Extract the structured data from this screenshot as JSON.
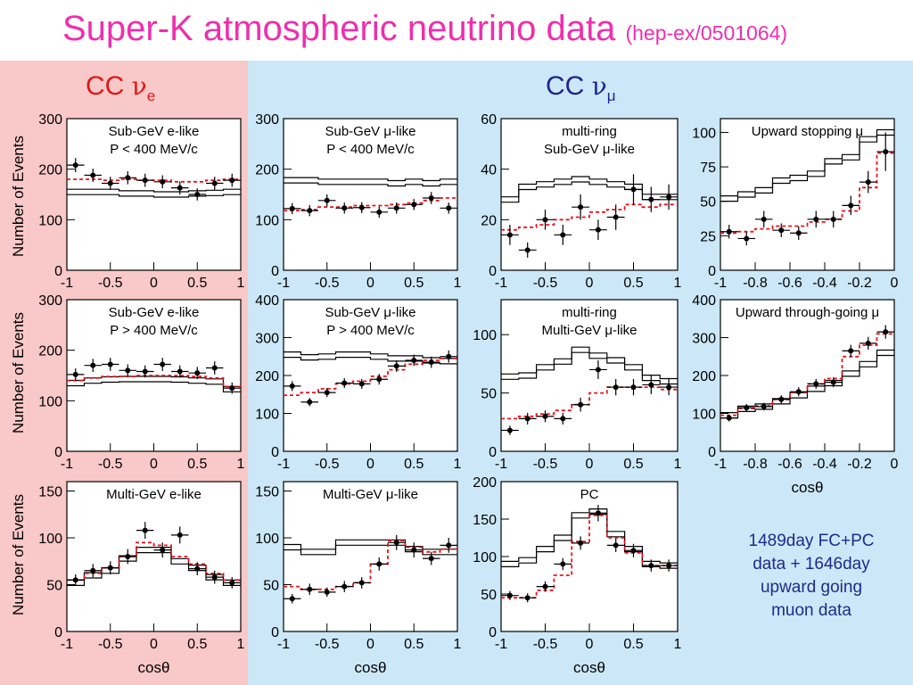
{
  "title": {
    "main": "Super-K atmospheric neutrino data",
    "ref": "(hep-ex/0501064)"
  },
  "headers": {
    "e_prefix": "CC",
    "e_greek": "ν",
    "e_sub": "e",
    "mu_prefix": "CC",
    "mu_greek": "ν",
    "mu_sub": "μ"
  },
  "ylabel": "Number of Events",
  "note": {
    "line1": "1489day FC+PC",
    "line2": "data  +  1646day",
    "line3": "upward going",
    "line4": "muon data"
  },
  "colors": {
    "title": "#ee2fae",
    "pink_bg": "#f9c8c8",
    "blue_bg": "#cce8f8",
    "mc_osc": "#e8141e",
    "header_e": "#e01818",
    "header_mu": "#20238e",
    "note": "#1f2a8a"
  },
  "chart_data": [
    {
      "id": "subgev-e-low",
      "type": "histogram",
      "label1": "Sub-GeV e-like",
      "label2": "P < 400 MeV/c",
      "xlim": [
        -1,
        1
      ],
      "ylim": [
        0,
        300
      ],
      "yticks": [
        0,
        100,
        200,
        300
      ],
      "xticks": [
        "-1",
        "-0.5",
        "0",
        "0.5",
        "1"
      ],
      "xlabel": "",
      "bins": [
        -1,
        -0.8,
        -0.6,
        -0.4,
        -0.2,
        0,
        0.2,
        0.4,
        0.6,
        0.8,
        1
      ],
      "nomc": [
        155,
        155,
        155,
        152,
        152,
        150,
        150,
        152,
        153,
        155
      ],
      "mc": [
        180,
        180,
        178,
        180,
        178,
        178,
        175,
        175,
        178,
        180
      ],
      "data": [
        208,
        188,
        172,
        183,
        178,
        175,
        163,
        150,
        172,
        178
      ],
      "errors": [
        14,
        13,
        13,
        13,
        13,
        13,
        13,
        12,
        13,
        13
      ]
    },
    {
      "id": "subgev-mu-low",
      "type": "histogram",
      "label1": "Sub-GeV μ-like",
      "label2": "P < 400 MeV/c",
      "xlim": [
        -1,
        1
      ],
      "ylim": [
        0,
        300
      ],
      "yticks": [
        0,
        100,
        200,
        300
      ],
      "xticks": [
        "-1",
        "-0.5",
        "0",
        "0.5",
        "1"
      ],
      "xlabel": "",
      "bins": [
        -1,
        -0.8,
        -0.6,
        -0.4,
        -0.2,
        0,
        0.2,
        0.4,
        0.6,
        0.8,
        1
      ],
      "nomc": [
        178,
        178,
        175,
        175,
        175,
        175,
        172,
        175,
        172,
        175
      ],
      "mc": [
        118,
        120,
        125,
        125,
        128,
        128,
        130,
        133,
        138,
        143
      ],
      "data": [
        122,
        118,
        138,
        123,
        124,
        115,
        123,
        130,
        143,
        123
      ],
      "errors": [
        11,
        11,
        12,
        11,
        11,
        11,
        11,
        11,
        12,
        11
      ]
    },
    {
      "id": "multiring-subgev-mu",
      "type": "histogram",
      "label1": "multi-ring",
      "label2": "Sub-GeV μ-like",
      "xlim": [
        -1,
        1
      ],
      "ylim": [
        0,
        60
      ],
      "yticks": [
        0,
        20,
        40,
        60
      ],
      "xticks": [
        "-1",
        "-0.5",
        "0",
        "0.5",
        "1"
      ],
      "xlabel": "",
      "bins": [
        -1,
        -0.8,
        -0.6,
        -0.4,
        -0.2,
        0,
        0.2,
        0.4,
        0.6,
        0.8,
        1
      ],
      "nomc": [
        28,
        33,
        34,
        35,
        36,
        35,
        34,
        33,
        29,
        29
      ],
      "mc": [
        16,
        17,
        18,
        20,
        21,
        23,
        24,
        26,
        25,
        26
      ],
      "data": [
        14,
        8,
        20,
        14,
        25,
        16,
        21,
        32,
        28,
        29
      ],
      "errors": [
        4,
        3,
        4,
        4,
        5,
        4,
        5,
        6,
        5,
        5
      ]
    },
    {
      "id": "upward-stopping-mu",
      "type": "histogram",
      "label1": "Upward stopping μ",
      "label2": "",
      "xlim": [
        -1,
        0
      ],
      "ylim": [
        0,
        110
      ],
      "yticks": [
        0,
        25,
        50,
        75,
        100
      ],
      "xticks": [
        "-1",
        "-0.8",
        "-0.6",
        "-0.4",
        "-0.2",
        "0"
      ],
      "xlabel": "",
      "bins": [
        -1,
        -0.9,
        -0.8,
        -0.7,
        -0.6,
        -0.5,
        -0.4,
        -0.3,
        -0.2,
        -0.1,
        0
      ],
      "nomc": [
        52,
        55,
        58,
        65,
        67,
        70,
        79,
        82,
        95,
        100
      ],
      "mc": [
        27,
        28,
        30,
        32,
        32,
        35,
        37,
        43,
        60,
        85
      ],
      "data": [
        28,
        23,
        37,
        29,
        27,
        37,
        37,
        47,
        64,
        86
      ],
      "errors": [
        5,
        5,
        6,
        5,
        5,
        6,
        6,
        7,
        8,
        14
      ]
    },
    {
      "id": "subgev-e-high",
      "type": "histogram",
      "label1": "Sub-GeV e-like",
      "label2": "P > 400 MeV/c",
      "xlim": [
        -1,
        1
      ],
      "ylim": [
        0,
        300
      ],
      "yticks": [
        0,
        100,
        200,
        300
      ],
      "xticks": [
        "-1",
        "-0.5",
        "0",
        "0.5",
        "1"
      ],
      "xlabel": "",
      "bins": [
        -1,
        -0.8,
        -0.6,
        -0.4,
        -0.2,
        0,
        0.2,
        0.4,
        0.6,
        0.8,
        1
      ],
      "nomc": [
        135,
        140,
        142,
        143,
        143,
        143,
        142,
        140,
        138,
        123
      ],
      "mc": [
        140,
        145,
        148,
        148,
        150,
        150,
        150,
        148,
        145,
        128
      ],
      "data": [
        152,
        170,
        172,
        160,
        158,
        172,
        158,
        155,
        165,
        125
      ],
      "errors": [
        12,
        13,
        13,
        12,
        12,
        13,
        12,
        12,
        13,
        11
      ]
    },
    {
      "id": "subgev-mu-high",
      "type": "histogram",
      "label1": "Sub-GeV μ-like",
      "label2": "P > 400 MeV/c",
      "xlim": [
        -1,
        1
      ],
      "ylim": [
        0,
        400
      ],
      "yticks": [
        0,
        100,
        200,
        300,
        400
      ],
      "xticks": [
        "-1",
        "-0.5",
        "0",
        "0.5",
        "1"
      ],
      "xlabel": "",
      "bins": [
        -1,
        -0.8,
        -0.6,
        -0.4,
        -0.2,
        0,
        0.2,
        0.4,
        0.6,
        0.8,
        1
      ],
      "nomc": [
        255,
        248,
        250,
        255,
        255,
        250,
        245,
        245,
        240,
        238
      ],
      "mc": [
        148,
        155,
        165,
        178,
        185,
        198,
        215,
        230,
        240,
        245
      ],
      "data": [
        172,
        130,
        155,
        180,
        178,
        190,
        225,
        240,
        235,
        250
      ],
      "errors": [
        13,
        11,
        12,
        13,
        13,
        14,
        15,
        15,
        15,
        16
      ]
    },
    {
      "id": "multiring-multigev-mu",
      "type": "histogram",
      "label1": "multi-ring",
      "label2": "Multi-GeV μ-like",
      "xlim": [
        -1,
        1
      ],
      "ylim": [
        0,
        130
      ],
      "yticks": [
        0,
        50,
        100
      ],
      "xticks": [
        "-1",
        "-0.5",
        "0",
        "0.5",
        "1"
      ],
      "xlabel": "",
      "bins": [
        -1,
        -0.8,
        -0.6,
        -0.4,
        -0.2,
        0,
        0.2,
        0.4,
        0.6,
        0.8,
        1
      ],
      "nomc": [
        64,
        65,
        72,
        77,
        87,
        82,
        78,
        72,
        63,
        60
      ],
      "mc": [
        28,
        30,
        32,
        35,
        40,
        50,
        55,
        55,
        55,
        53
      ],
      "data": [
        18,
        28,
        30,
        28,
        40,
        70,
        55,
        55,
        57,
        55
      ],
      "errors": [
        4,
        5,
        5,
        5,
        6,
        8,
        7,
        7,
        8,
        7
      ]
    },
    {
      "id": "upward-throughgoing-mu",
      "type": "histogram",
      "label1": "Upward through-going μ",
      "label2": "",
      "xlim": [
        -1,
        0
      ],
      "ylim": [
        0,
        400
      ],
      "yticks": [
        0,
        100,
        200,
        300,
        400
      ],
      "xticks": [
        "-1",
        "-0.8",
        "-0.6",
        "-0.4",
        "-0.2",
        "0"
      ],
      "xlabel": "cosθ",
      "bins": [
        -1,
        -0.9,
        -0.8,
        -0.7,
        -0.6,
        -0.5,
        -0.4,
        -0.3,
        -0.2,
        -0.1,
        0
      ],
      "nomc": [
        95,
        112,
        118,
        132,
        148,
        165,
        180,
        205,
        230,
        260
      ],
      "mc": [
        95,
        113,
        120,
        137,
        155,
        178,
        192,
        250,
        280,
        310
      ],
      "data": [
        88,
        115,
        118,
        137,
        157,
        178,
        182,
        265,
        285,
        315
      ],
      "errors": [
        9,
        10,
        10,
        11,
        12,
        13,
        13,
        16,
        17,
        18
      ]
    },
    {
      "id": "multigev-e",
      "type": "histogram",
      "label1": "Multi-GeV e-like",
      "label2": "",
      "xlim": [
        -1,
        1
      ],
      "ylim": [
        0,
        160
      ],
      "yticks": [
        0,
        50,
        100,
        150
      ],
      "xticks": [
        "-1",
        "-0.5",
        "0",
        "0.5",
        "1"
      ],
      "xlabel": "cosθ",
      "bins": [
        -1,
        -0.8,
        -0.6,
        -0.4,
        -0.2,
        0,
        0.2,
        0.4,
        0.6,
        0.8,
        1
      ],
      "nomc": [
        52,
        60,
        65,
        78,
        87,
        87,
        75,
        68,
        58,
        52
      ],
      "mc": [
        55,
        62,
        68,
        80,
        95,
        92,
        80,
        72,
        62,
        55
      ],
      "data": [
        55,
        65,
        68,
        80,
        108,
        87,
        103,
        67,
        58,
        52
      ],
      "errors": [
        6,
        7,
        7,
        8,
        9,
        8,
        9,
        7,
        7,
        6
      ]
    },
    {
      "id": "multigev-mu",
      "type": "histogram",
      "label1": "Multi-GeV μ-like",
      "label2": "",
      "xlim": [
        -1,
        1
      ],
      "ylim": [
        0,
        160
      ],
      "yticks": [
        0,
        50,
        100,
        150
      ],
      "xticks": [
        "-1",
        "-0.5",
        "0",
        "0.5",
        "1"
      ],
      "xlabel": "cosθ",
      "bins": [
        -1,
        -0.8,
        -0.6,
        -0.4,
        -0.2,
        0,
        0.2,
        0.4,
        0.6,
        0.8,
        1
      ],
      "nomc": [
        90,
        85,
        85,
        95,
        95,
        95,
        95,
        88,
        85,
        85
      ],
      "mc": [
        48,
        45,
        45,
        48,
        52,
        72,
        97,
        90,
        85,
        88
      ],
      "data": [
        35,
        45,
        42,
        48,
        52,
        72,
        95,
        87,
        78,
        92
      ],
      "errors": [
        5,
        6,
        5,
        6,
        6,
        7,
        8,
        8,
        7,
        8
      ]
    },
    {
      "id": "pc",
      "type": "histogram",
      "label1": "PC",
      "label2": "",
      "xlim": [
        -1,
        1
      ],
      "ylim": [
        0,
        200
      ],
      "yticks": [
        0,
        50,
        100,
        150,
        200
      ],
      "xticks": [
        "-1",
        "-0.5",
        "0",
        "0.5",
        "1"
      ],
      "xlabel": "cosθ",
      "bins": [
        -1,
        -0.8,
        -0.6,
        -0.4,
        -0.2,
        0,
        0.2,
        0.4,
        0.6,
        0.8,
        1
      ],
      "nomc": [
        90,
        95,
        110,
        125,
        155,
        160,
        130,
        110,
        90,
        88
      ],
      "mc": [
        45,
        45,
        55,
        75,
        120,
        155,
        125,
        105,
        88,
        88
      ],
      "data": [
        48,
        45,
        60,
        90,
        118,
        158,
        115,
        108,
        88,
        88
      ],
      "errors": [
        6,
        6,
        7,
        8,
        9,
        11,
        9,
        9,
        8,
        8
      ]
    }
  ]
}
